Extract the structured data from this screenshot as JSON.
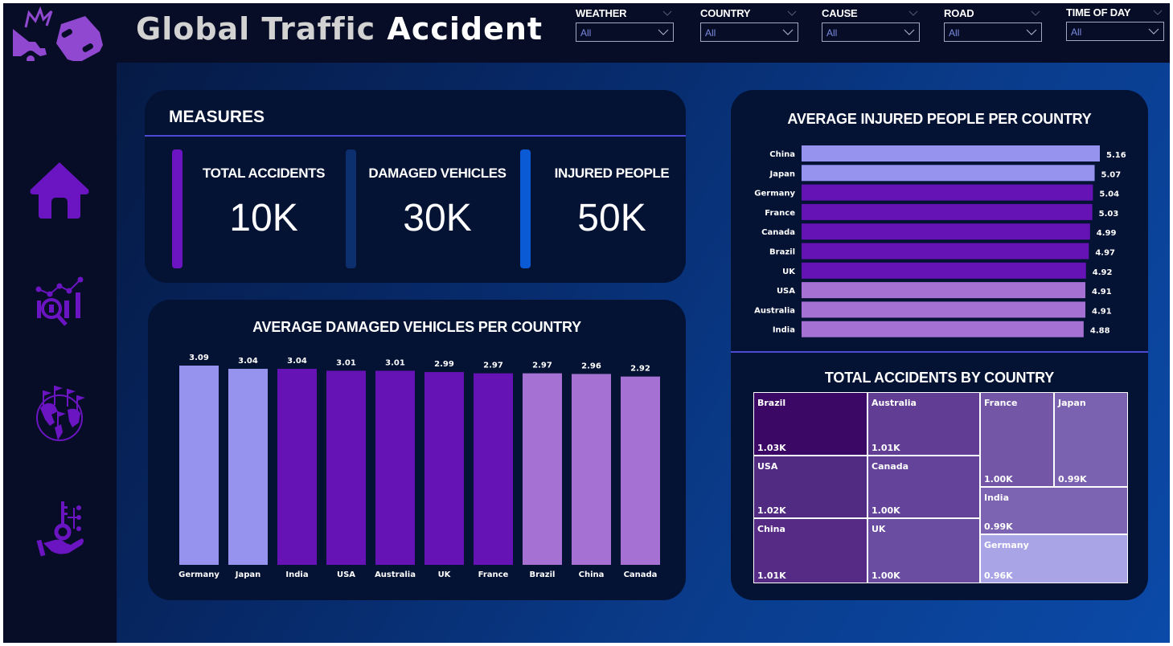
{
  "header": {
    "title_part1": "Global Traffic",
    "title_part2": "Accident"
  },
  "slicers": [
    {
      "label": "WEATHER",
      "value": "All"
    },
    {
      "label": "COUNTRY",
      "value": "All"
    },
    {
      "label": "CAUSE",
      "value": "All"
    },
    {
      "label": "ROAD",
      "value": "All"
    },
    {
      "label": "TIME OF DAY",
      "value": "All"
    }
  ],
  "sidebar": {
    "items": [
      {
        "icon": "home-icon",
        "label": "Home"
      },
      {
        "icon": "analytics-icon",
        "label": "Analytics"
      },
      {
        "icon": "globe-flags-icon",
        "label": "Countries"
      },
      {
        "icon": "key-hand-icon",
        "label": "Key Factors"
      }
    ]
  },
  "measures": {
    "title": "MEASURES",
    "kpis": [
      {
        "label": "TOTAL ACCIDENTS",
        "value": "10K",
        "accent": "#6a14c2"
      },
      {
        "label": "DAMAGED VEHICLES",
        "value": "30K",
        "accent": "#0c2f6e"
      },
      {
        "label": "INJURED PEOPLE",
        "value": "50K",
        "accent": "#0a5ad6"
      }
    ]
  },
  "chart_data": [
    {
      "type": "bar",
      "title": "AVERAGE DAMAGED VEHICLES PER COUNTRY",
      "orientation": "vertical",
      "categories": [
        "Germany",
        "Japan",
        "India",
        "USA",
        "Australia",
        "UK",
        "France",
        "Brazil",
        "China",
        "Canada"
      ],
      "values": [
        3.09,
        3.04,
        3.04,
        3.01,
        3.01,
        2.99,
        2.97,
        2.97,
        2.96,
        2.92
      ],
      "labels": [
        "3.09",
        "3.04",
        "3.04",
        "3.01",
        "3.01",
        "2.99",
        "2.97",
        "2.97",
        "2.96",
        "2.92"
      ],
      "colors": [
        "#9593ee",
        "#9593ee",
        "#6613b5",
        "#6613b5",
        "#6613b5",
        "#6613b5",
        "#6613b5",
        "#a572d4",
        "#a572d4",
        "#a572d4"
      ],
      "xlabel": "",
      "ylabel": "",
      "ylim": [
        0,
        3.09
      ],
      "grid": false
    },
    {
      "type": "bar",
      "title": "AVERAGE INJURED PEOPLE PER COUNTRY",
      "orientation": "horizontal",
      "categories": [
        "China",
        "Japan",
        "Germany",
        "France",
        "Canada",
        "Brazil",
        "UK",
        "USA",
        "Australia",
        "India"
      ],
      "values": [
        5.16,
        5.07,
        5.04,
        5.03,
        4.99,
        4.97,
        4.92,
        4.91,
        4.91,
        4.88
      ],
      "labels": [
        "5.16",
        "5.07",
        "5.04",
        "5.03",
        "4.99",
        "4.97",
        "4.92",
        "4.91",
        "4.91",
        "4.88"
      ],
      "colors": [
        "#9593ee",
        "#9593ee",
        "#6613b5",
        "#6613b5",
        "#6613b5",
        "#6613b5",
        "#6613b5",
        "#a572d4",
        "#a572d4",
        "#a572d4"
      ],
      "xlabel": "",
      "ylabel": "",
      "xlim": [
        0,
        5.16
      ],
      "grid": false
    },
    {
      "type": "treemap",
      "title": "TOTAL ACCIDENTS BY COUNTRY",
      "items": [
        {
          "name": "Brazil",
          "value": 1030,
          "label": "1.03K",
          "color": "#3b0865"
        },
        {
          "name": "USA",
          "value": 1020,
          "label": "1.02K",
          "color": "#512a82"
        },
        {
          "name": "China",
          "value": 1010,
          "label": "1.01K",
          "color": "#552b86"
        },
        {
          "name": "Australia",
          "value": 1010,
          "label": "1.01K",
          "color": "#613e94"
        },
        {
          "name": "Canada",
          "value": 1000,
          "label": "1.00K",
          "color": "#64449a"
        },
        {
          "name": "UK",
          "value": 1000,
          "label": "1.00K",
          "color": "#6a4ca0"
        },
        {
          "name": "France",
          "value": 1000,
          "label": "1.00K",
          "color": "#7356a6"
        },
        {
          "name": "Japan",
          "value": 990,
          "label": "0.99K",
          "color": "#7b62b0"
        },
        {
          "name": "India",
          "value": 990,
          "label": "0.99K",
          "color": "#7c64b2"
        },
        {
          "name": "Germany",
          "value": 960,
          "label": "0.96K",
          "color": "#a8a4e6"
        }
      ]
    }
  ]
}
